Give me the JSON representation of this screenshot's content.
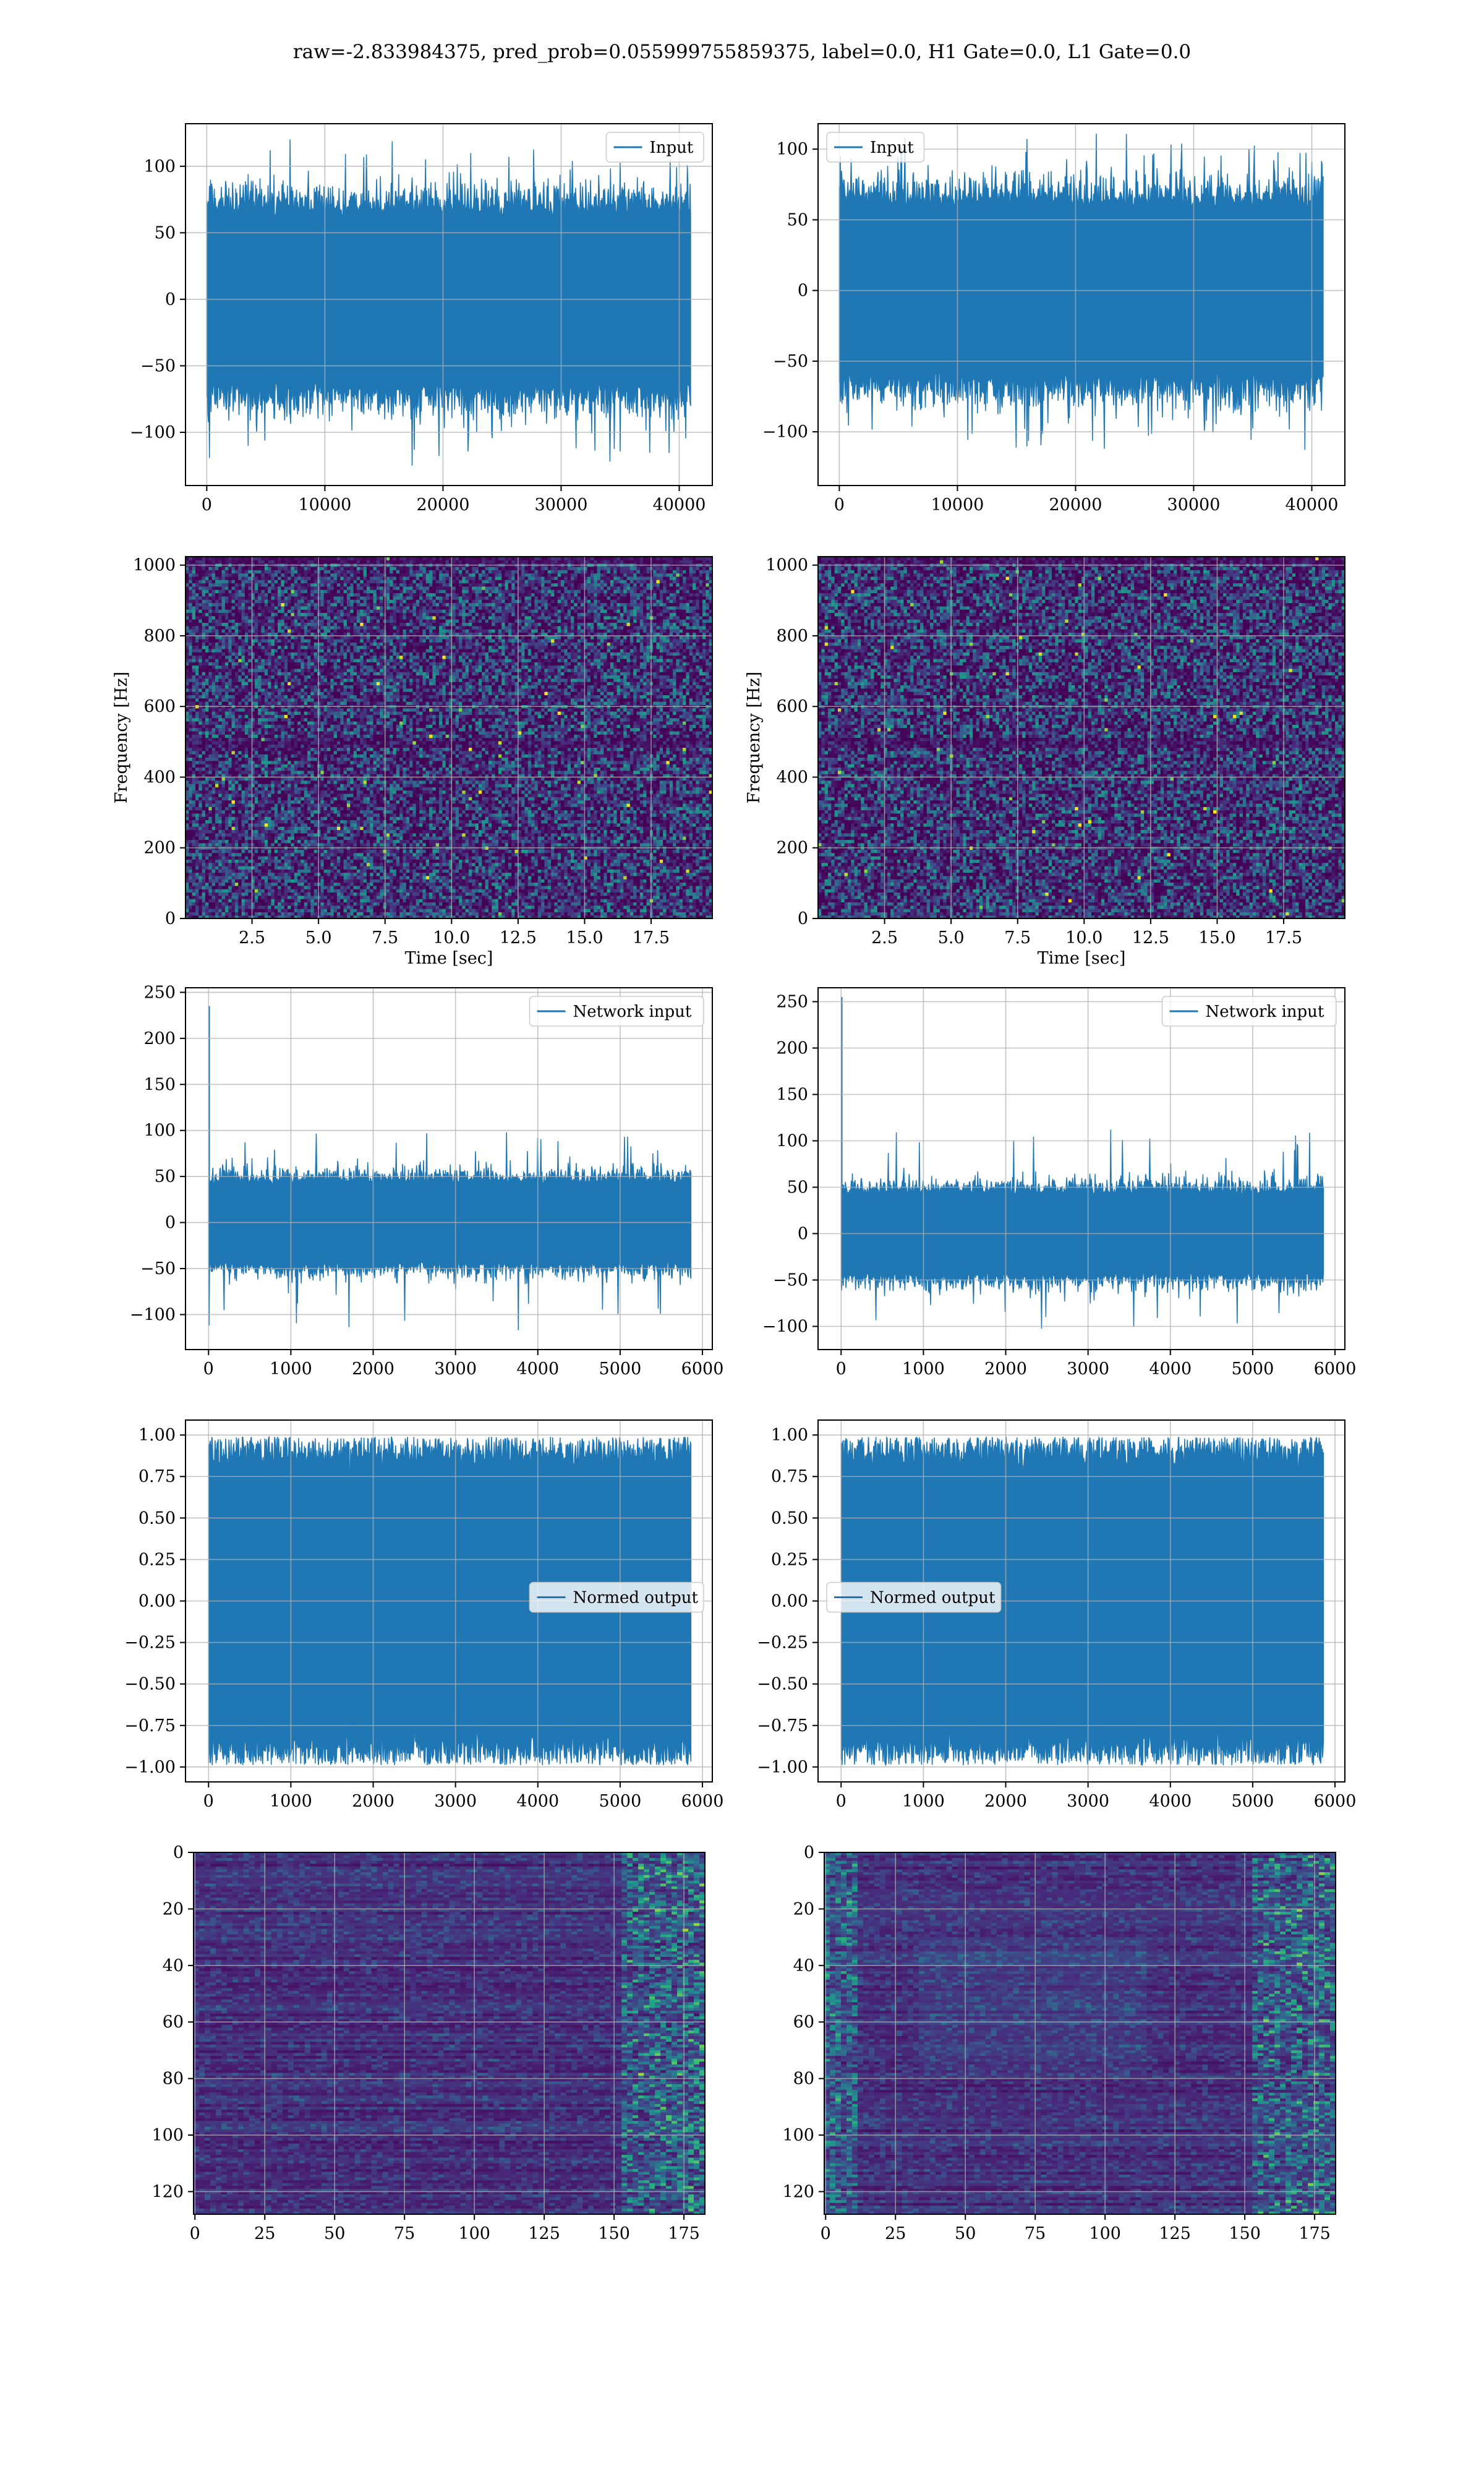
{
  "figure": {
    "suptitle": "raw=-2.833984375, pred_prob=0.055999755859375, label=0.0, H1 Gate=0.0, L1 Gate=0.0",
    "colors": {
      "line": "#1f77b4",
      "grid": "#b0b0b0",
      "viridis": [
        "#440154",
        "#482878",
        "#3e4989",
        "#31688e",
        "#26828e",
        "#1f9e89",
        "#35b779",
        "#6ece58",
        "#b5de2b",
        "#fde725"
      ]
    }
  },
  "chart_data": [
    {
      "id": "input-h1",
      "type": "line",
      "legend": [
        "Input"
      ],
      "legend_loc": "upper right",
      "xlim": [
        -1800,
        42800
      ],
      "ylim": [
        -140,
        132
      ],
      "xticks": [
        0,
        10000,
        20000,
        30000,
        40000
      ],
      "yticks": [
        -100,
        -50,
        0,
        50,
        100
      ],
      "xlabel": "",
      "ylabel": "",
      "grid": true,
      "signal": {
        "n": 40960,
        "x_start": 0,
        "x_end": 40960,
        "envelope_typical": [
          -62,
          62
        ],
        "peak_max": 123,
        "peak_min": -126
      }
    },
    {
      "id": "input-l1",
      "type": "line",
      "legend": [
        "Input"
      ],
      "legend_loc": "upper left",
      "xlim": [
        -1800,
        42800
      ],
      "ylim": [
        -138,
        118
      ],
      "xticks": [
        0,
        10000,
        20000,
        30000,
        40000
      ],
      "yticks": [
        -100,
        -50,
        0,
        50,
        100
      ],
      "xlabel": "",
      "ylabel": "",
      "grid": true,
      "signal": {
        "n": 40960,
        "x_start": 0,
        "x_end": 40960,
        "envelope_typical": [
          -58,
          58
        ],
        "peak_max": 112,
        "peak_min": -118
      }
    },
    {
      "id": "spec-h1",
      "type": "heatmap",
      "xlim": [
        0,
        19.8
      ],
      "ylim": [
        0,
        1024
      ],
      "xticks": [
        2.5,
        5.0,
        7.5,
        10.0,
        12.5,
        15.0,
        17.5
      ],
      "yticks": [
        0,
        200,
        400,
        600,
        800,
        1000
      ],
      "xlabel": "Time [sec]",
      "ylabel": "Frequency [Hz]",
      "grid": true,
      "colormap": "viridis"
    },
    {
      "id": "spec-l1",
      "type": "heatmap",
      "xlim": [
        0,
        19.8
      ],
      "ylim": [
        0,
        1024
      ],
      "xticks": [
        2.5,
        5.0,
        7.5,
        10.0,
        12.5,
        15.0,
        17.5
      ],
      "yticks": [
        0,
        200,
        400,
        600,
        800,
        1000
      ],
      "xlabel": "Time [sec]",
      "ylabel": "Frequency [Hz]",
      "grid": true,
      "colormap": "viridis"
    },
    {
      "id": "netin-h1",
      "type": "line",
      "legend": [
        "Network input"
      ],
      "legend_loc": "upper right",
      "xlim": [
        -280,
        6120
      ],
      "ylim": [
        -138,
        255
      ],
      "xticks": [
        0,
        1000,
        2000,
        3000,
        4000,
        5000,
        6000
      ],
      "yticks": [
        -100,
        -50,
        0,
        50,
        100,
        150,
        200,
        250
      ],
      "xlabel": "",
      "ylabel": "",
      "grid": true,
      "signal": {
        "n": 5860,
        "x_start": 0,
        "x_end": 5860,
        "spike": {
          "x": 0,
          "y": 235
        },
        "envelope_typical": [
          -42,
          42
        ],
        "peak_max": 100,
        "peak_min": -118
      }
    },
    {
      "id": "netin-l1",
      "type": "line",
      "legend": [
        "Network input"
      ],
      "legend_loc": "upper right",
      "xlim": [
        -280,
        6120
      ],
      "ylim": [
        -125,
        265
      ],
      "xticks": [
        0,
        1000,
        2000,
        3000,
        4000,
        5000,
        6000
      ],
      "yticks": [
        -100,
        -50,
        0,
        50,
        100,
        150,
        200,
        250
      ],
      "xlabel": "",
      "ylabel": "",
      "grid": true,
      "signal": {
        "n": 5860,
        "x_start": 0,
        "x_end": 5860,
        "spike": {
          "x": 0,
          "y": 255
        },
        "envelope_typical": [
          -42,
          42
        ],
        "peak_max": 113,
        "peak_min": -105
      }
    },
    {
      "id": "normed-h1",
      "type": "line",
      "legend": [
        "Normed output"
      ],
      "legend_loc": "center right",
      "xlim": [
        -280,
        6120
      ],
      "ylim": [
        -1.09,
        1.09
      ],
      "xticks": [
        0,
        1000,
        2000,
        3000,
        4000,
        5000,
        6000
      ],
      "yticks": [
        -1.0,
        -0.75,
        -0.5,
        -0.25,
        0.0,
        0.25,
        0.5,
        0.75,
        1.0
      ],
      "xlabel": "",
      "ylabel": "",
      "grid": true,
      "signal": {
        "n": 5860,
        "x_start": 0,
        "x_end": 5860,
        "envelope_typical": [
          -0.9,
          0.9
        ],
        "peak_max": 1.0,
        "peak_min": -1.0
      }
    },
    {
      "id": "normed-l1",
      "type": "line",
      "legend": [
        "Normed output"
      ],
      "legend_loc": "center left",
      "xlim": [
        -280,
        6120
      ],
      "ylim": [
        -1.09,
        1.09
      ],
      "xticks": [
        0,
        1000,
        2000,
        3000,
        4000,
        5000,
        6000
      ],
      "yticks": [
        -1.0,
        -0.75,
        -0.5,
        -0.25,
        0.0,
        0.25,
        0.5,
        0.75,
        1.0
      ],
      "xlabel": "",
      "ylabel": "",
      "grid": true,
      "signal": {
        "n": 5860,
        "x_start": 0,
        "x_end": 5860,
        "envelope_typical": [
          -0.9,
          0.9
        ],
        "peak_max": 1.0,
        "peak_min": -1.0
      }
    },
    {
      "id": "feat-h1",
      "type": "heatmap",
      "xlim": [
        -0.5,
        182.5
      ],
      "ylim": [
        128,
        0
      ],
      "xticks": [
        0,
        25,
        50,
        75,
        100,
        125,
        150,
        175
      ],
      "yticks": [
        0,
        20,
        40,
        60,
        80,
        100,
        120
      ],
      "xlabel": "",
      "ylabel": "",
      "grid": true,
      "colormap": "viridis",
      "rows": 128,
      "cols": 183
    },
    {
      "id": "feat-l1",
      "type": "heatmap",
      "xlim": [
        -0.5,
        182.5
      ],
      "ylim": [
        128,
        0
      ],
      "xticks": [
        0,
        25,
        50,
        75,
        100,
        125,
        150,
        175
      ],
      "yticks": [
        0,
        20,
        40,
        60,
        80,
        100,
        120
      ],
      "xlabel": "",
      "ylabel": "",
      "grid": true,
      "colormap": "viridis",
      "rows": 128,
      "cols": 183
    }
  ]
}
